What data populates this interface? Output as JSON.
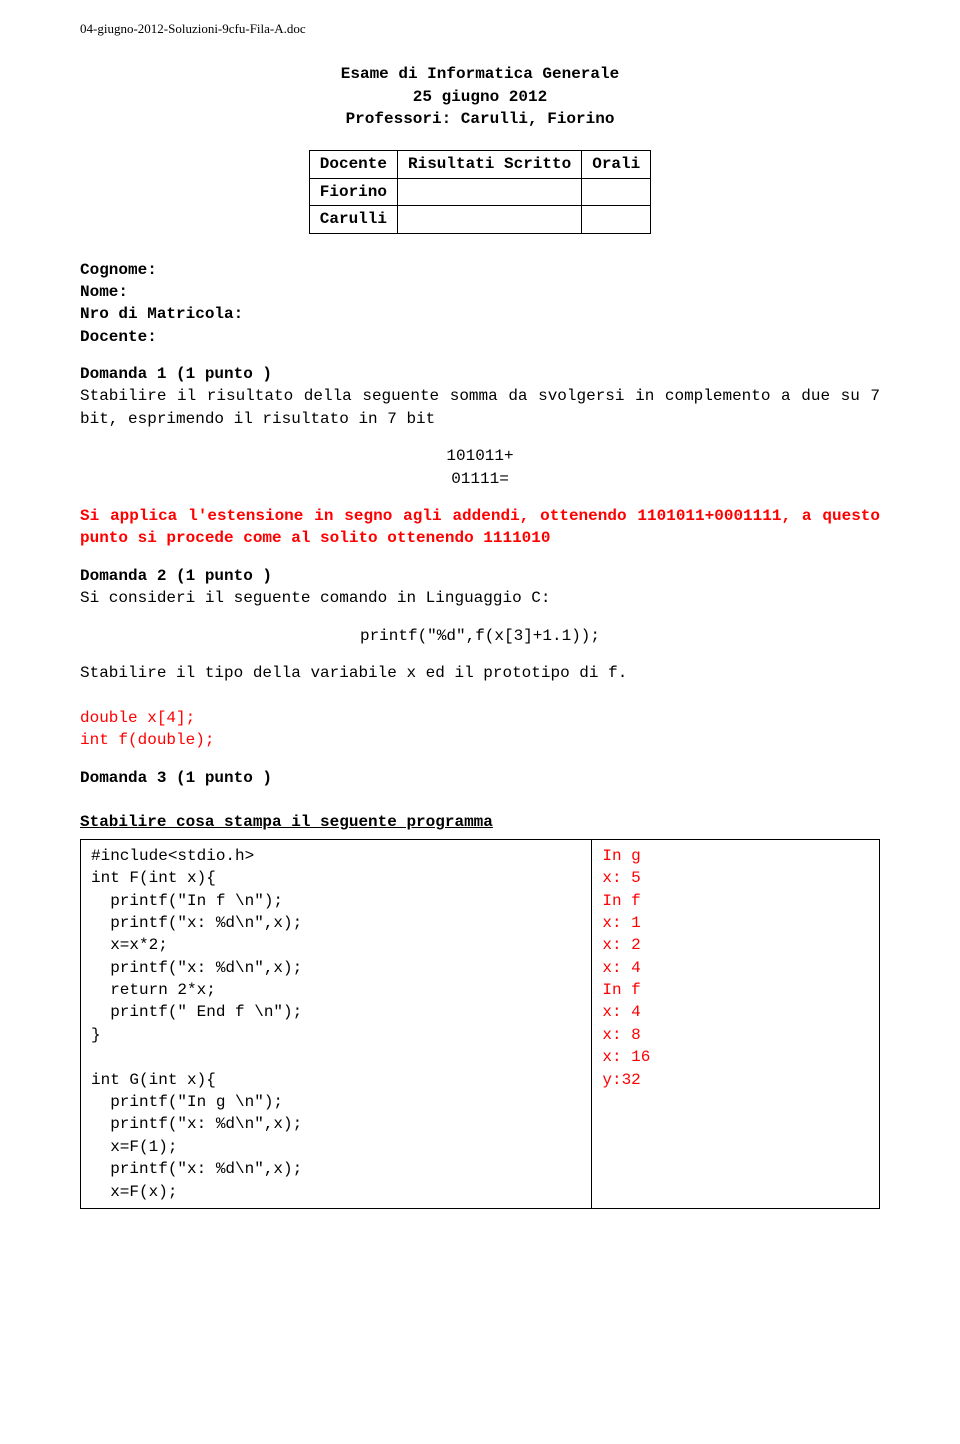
{
  "filename": "04-giugno-2012-Soluzioni-9cfu-Fila-A.doc",
  "title": {
    "line1": "Esame di Informatica Generale",
    "line2": "25 giugno 2012",
    "line3": "Professori: Carulli, Fiorino"
  },
  "docente_table": {
    "headers": [
      "Docente",
      "Risultati Scritto",
      "Orali"
    ],
    "rows": [
      "Fiorino",
      "Carulli"
    ]
  },
  "form": {
    "cognome": "Cognome:",
    "nome": "Nome:",
    "nro": "Nro di Matricola:",
    "docente": "Docente:"
  },
  "q1": {
    "heading": "Domanda 1 (1 punto )",
    "text": "Stabilire il risultato della seguente somma da svolgersi in complemento a due su 7 bit, esprimendo il risultato in 7 bit",
    "sum1": "101011+",
    "sum2": "01111=",
    "answer_p1a": "Si applica l'estensione in segno agli addendi, ottenendo",
    "answer_p1b": "1101011+0001111, a questo punto si procede come al solito ottenendo 1111010"
  },
  "q2": {
    "heading": "Domanda 2 (1 punto )",
    "text": "Si consideri il seguente comando in Linguaggio C:",
    "code": "printf(\"%d\",f(x[3]+1.1));",
    "text2": "Stabilire il tipo della variabile x ed il prototipo di f.",
    "answer1": "double x[4];",
    "answer2": "int f(double);"
  },
  "q3": {
    "heading": "Domanda 3 (1 punto )",
    "text": "Stabilire cosa stampa il seguente programma",
    "code": {
      "l1": "#include<stdio.h>",
      "l2": "int F(int x){",
      "l3": "printf(\"In f \\n\");",
      "l4": "printf(\"x: %d\\n\",x);",
      "l5": "x=x*2;",
      "l6": "printf(\"x: %d\\n\",x);",
      "l7": "return 2*x;",
      "l8": "printf(\" End f \\n\");",
      "l9": "}",
      "l10": "",
      "l11": "int G(int x){",
      "l12": "printf(\"In g \\n\");",
      "l13": "printf(\"x: %d\\n\",x);",
      "l14": "x=F(1);",
      "l15": "printf(\"x: %d\\n\",x);",
      "l16": "x=F(x);"
    },
    "output": {
      "l1": "In g",
      "l2": "x: 5",
      "l3": "In f",
      "l4": "x: 1",
      "l5": "x: 2",
      "l6": "x: 4",
      "l7": "In f",
      "l8": "x: 4",
      "l9": "x: 8",
      "l10": "x: 16",
      "l11": "y:32"
    }
  },
  "colors": {
    "answer": "#ff0000",
    "text": "#000000",
    "background": "#ffffff"
  }
}
